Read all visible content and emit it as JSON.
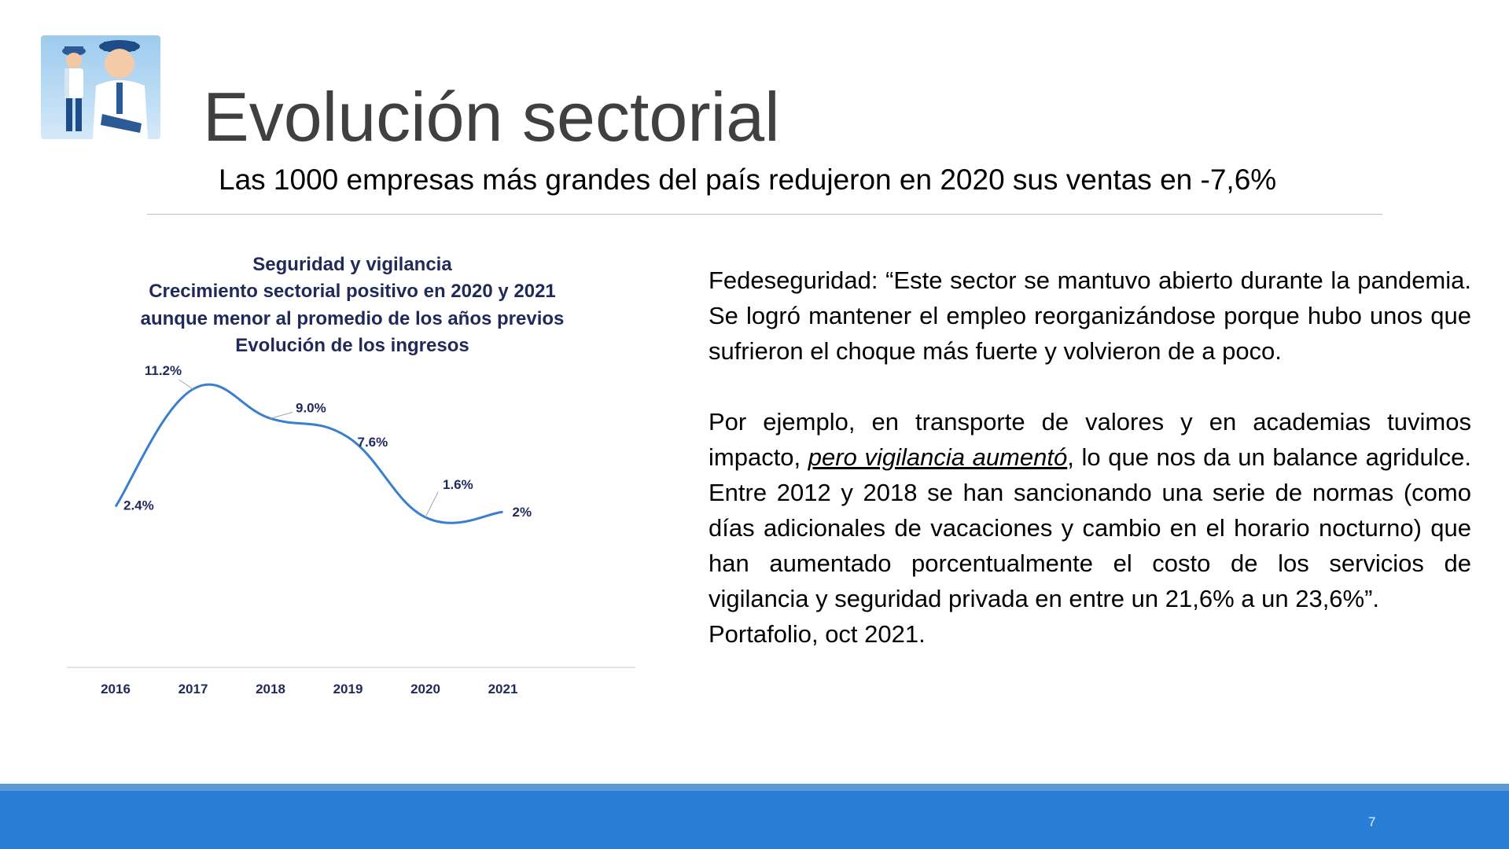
{
  "slide": {
    "title": "Evolución sectorial",
    "subtitle": "Las 1000 empresas más grandes del país redujeron en 2020 sus ventas en -7,6%",
    "page_number": "7"
  },
  "chart_data": {
    "type": "line",
    "title_lines": [
      "Seguridad y vigilancia",
      "Crecimiento sectorial positivo en 2020 y 2021",
      "aunque menor al promedio de los años previos",
      "Evolución de los ingresos"
    ],
    "categories": [
      "2016",
      "2017",
      "2018",
      "2019",
      "2020",
      "2021"
    ],
    "values": [
      2.4,
      11.2,
      9.0,
      7.6,
      1.6,
      2.0
    ],
    "labels": [
      "2.4%",
      "11.2%",
      "9.0%",
      "7.6%",
      "1.6%",
      "2%"
    ],
    "line_color": "#3a7fcf",
    "smooth": true,
    "grid": false
  },
  "body": {
    "paragraph1": "Fedeseguridad: “Este sector se mantuvo abierto durante la pandemia. Se logró mantener el empleo reorganizándose porque hubo unos que sufrieron el choque más fuerte y volvieron de a poco.",
    "p2_before": "Por ejemplo, en transporte de valores y en academias tuvimos impacto, ",
    "p2_emph": "pero vigilancia aumentó",
    "p2_after": ", lo que nos da un balance agridulce. Entre 2012 y 2018 se han sancionando una serie de normas (como días adicionales de vacaciones y cambio en el horario nocturno) que han aumentado porcentualmente el costo de los servicios de vigilancia y seguridad privada en entre un 21,6% a un 23,6%”.",
    "source": "Portafolio, oct 2021."
  },
  "colors": {
    "title": "#404040",
    "footer": "#2a7dd4",
    "footer_accent": "#5b9bd5",
    "chart_text": "#1f2a5a"
  }
}
